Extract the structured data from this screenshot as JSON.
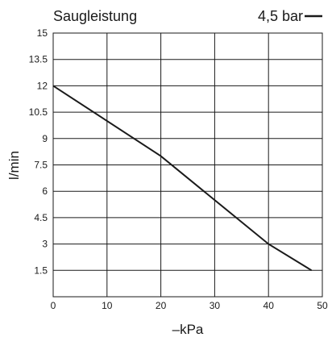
{
  "chart_data": {
    "type": "line",
    "title": "Saugleistung",
    "legend": {
      "label": "4,5 bar",
      "position": "top-right"
    },
    "xlabel": "–kPa",
    "ylabel": "l/min",
    "xlim": [
      0,
      50
    ],
    "ylim": [
      0,
      15
    ],
    "x_ticks": [
      "0",
      "10",
      "20",
      "30",
      "40",
      "50"
    ],
    "y_ticks": [
      "1.5",
      "3",
      "4.5",
      "6",
      "7.5",
      "9",
      "10.5",
      "12",
      "13.5",
      "15"
    ],
    "grid": true,
    "series": [
      {
        "name": "4,5 bar",
        "color": "#1a1a1a",
        "x": [
          0,
          20,
          40,
          48
        ],
        "y": [
          12,
          8,
          3,
          1.5
        ]
      }
    ]
  }
}
